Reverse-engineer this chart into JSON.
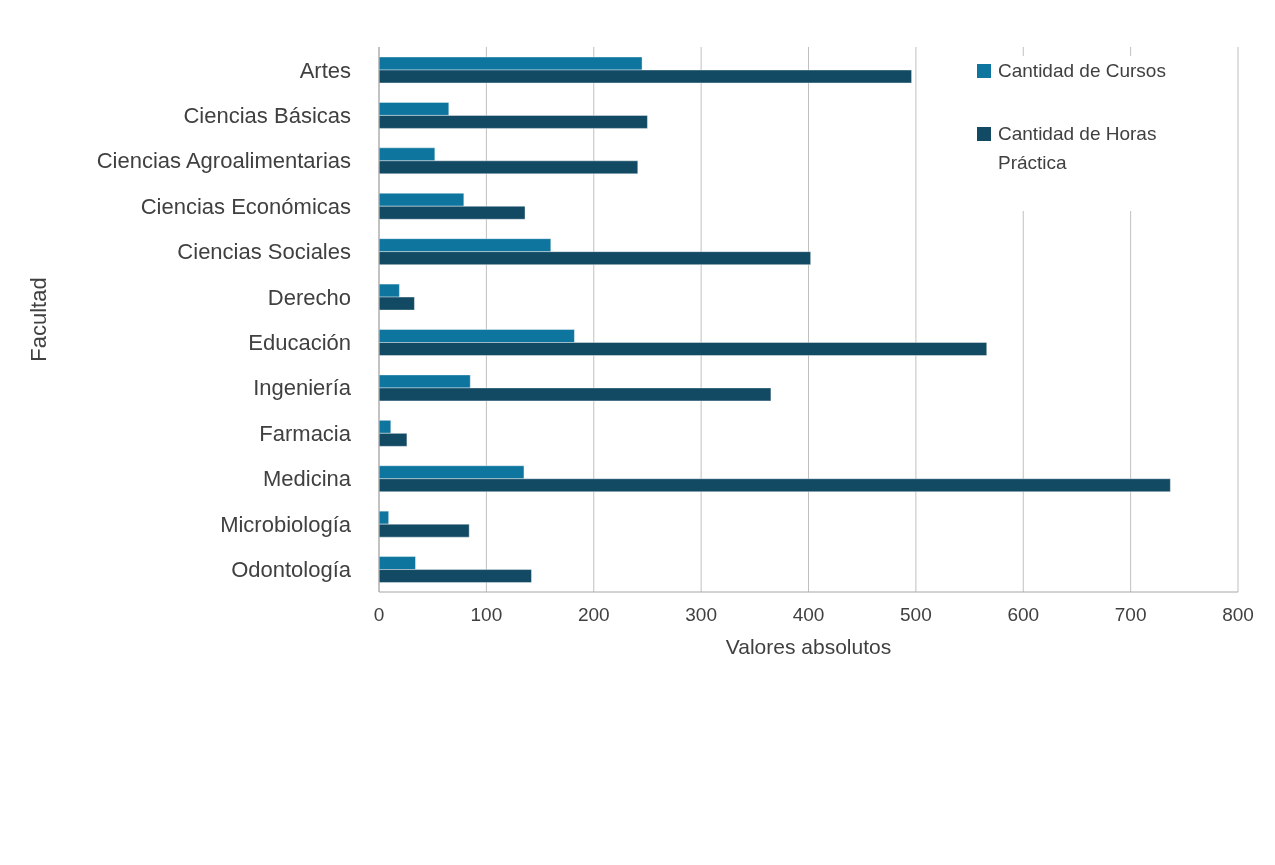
{
  "chart_data": {
    "type": "bar",
    "orientation": "horizontal",
    "xlabel": "Valores absolutos",
    "ylabel": "Facultad",
    "categories": [
      "Artes",
      "Ciencias Básicas",
      "Ciencias Agroalimentarias",
      "Ciencias Económicas",
      "Ciencias Sociales",
      "Derecho",
      "Educación",
      "Ingeniería",
      "Farmacia",
      "Medicina",
      "Microbiología",
      "Odontología"
    ],
    "series": [
      {
        "name": "Cantidad de Cursos",
        "color": "#0e759e",
        "values": [
          245,
          65,
          52,
          79,
          160,
          19,
          182,
          85,
          11,
          135,
          9,
          34
        ]
      },
      {
        "name": "Cantidad de Horas Práctica",
        "color": "#124963",
        "values": [
          496,
          250,
          241,
          136,
          402,
          33,
          566,
          365,
          26,
          737,
          84,
          142
        ]
      }
    ],
    "xlim": [
      0,
      800
    ],
    "xticks": [
      0,
      100,
      200,
      300,
      400,
      500,
      600,
      700,
      800
    ],
    "grid": "x",
    "legend": "top right"
  }
}
